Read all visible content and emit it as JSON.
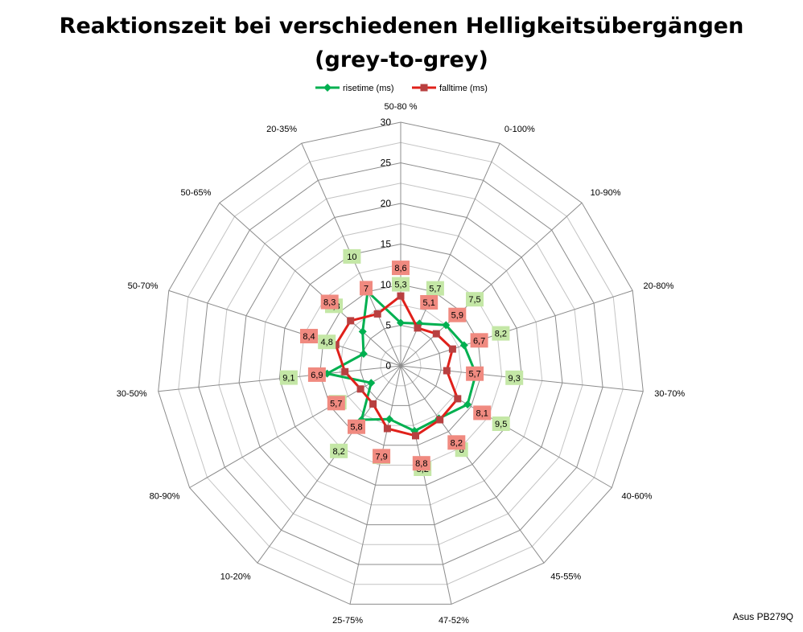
{
  "title_line1": "Reaktionszeit bei verschiedenen Helligkeitsübergängen",
  "title_line2": "(grey-to-grey)",
  "credit": "Asus PB279Q",
  "chart_data": {
    "type": "radar",
    "categories": [
      "50-80 %",
      "0-100%",
      "10-90%",
      "20-80%",
      "30-70%",
      "40-60%",
      "45-55%",
      "47-52%",
      "25-75%",
      "10-20%",
      "80-90%",
      "30-50%",
      "50-70%",
      "50-65%",
      "20-35%"
    ],
    "series": [
      {
        "name": "risetime (ms)",
        "color": "#00b050",
        "label_bg": "#c4e7a6",
        "marker": "diamond",
        "values": [
          5.3,
          5.7,
          7.5,
          8.2,
          9.3,
          9.5,
          8.0,
          8.2,
          6.7,
          8.2,
          4.2,
          9.1,
          4.8,
          6.3,
          10
        ]
      },
      {
        "name": "falltime (ms)",
        "color": "#e0201a",
        "label_bg": "#f08a80",
        "marker": "square",
        "values": [
          8.6,
          5.1,
          5.9,
          6.7,
          5.7,
          8.1,
          8.2,
          8.8,
          7.9,
          5.8,
          5.7,
          6.9,
          8.4,
          8.3,
          7
        ]
      }
    ],
    "rlim": [
      0,
      30
    ],
    "ticks": [
      0,
      5,
      10,
      15,
      20,
      25,
      30
    ],
    "legend": "top",
    "grid": true
  }
}
